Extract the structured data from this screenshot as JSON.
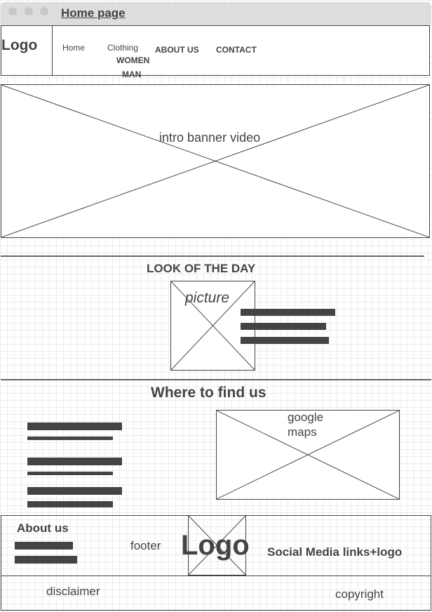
{
  "window": {
    "title": "Home page"
  },
  "header": {
    "logo": "Logo",
    "nav": {
      "home": "Home",
      "clothing": "Clothing",
      "clothing_sub": [
        "WOMEN",
        "MAN"
      ],
      "about": "ABOUT US",
      "contact": "CONTACT"
    }
  },
  "banner": {
    "label": "intro banner video"
  },
  "look_of_day": {
    "title": "LOOK OF THE DAY",
    "picture_label": "picture"
  },
  "find_us": {
    "title": "Where to find us",
    "map_label_line1": "google",
    "map_label_line2": "maps"
  },
  "footer": {
    "about_title": "About us",
    "label": "footer",
    "logo": "Logo",
    "social": "Social Media links+logo",
    "disclaimer": "disclaimer",
    "copyright": "copyright"
  },
  "colors": {
    "ink": "#444444",
    "titlebar": "#dddddd",
    "grid": "#ececec"
  }
}
